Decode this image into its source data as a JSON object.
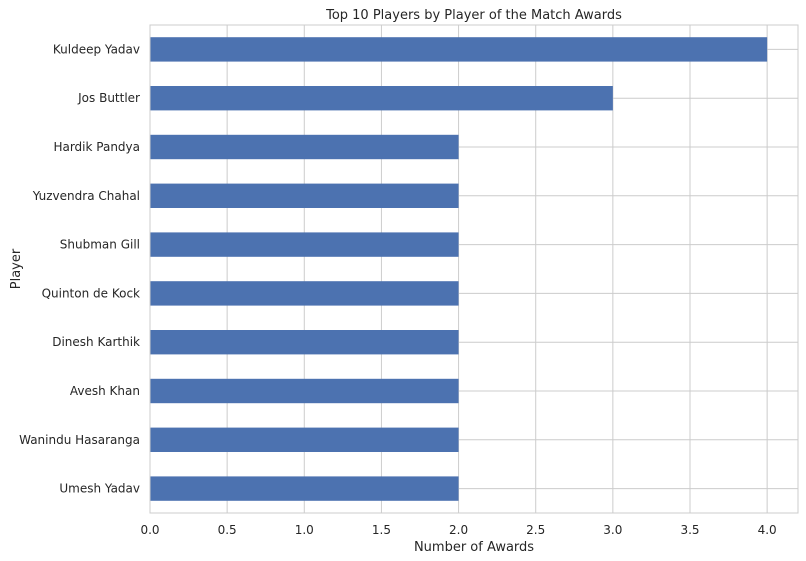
{
  "chart_data": {
    "type": "bar",
    "orientation": "horizontal",
    "title": "Top 10 Players by Player of the Match Awards",
    "xlabel": "Number of Awards",
    "ylabel": "Player",
    "categories": [
      "Kuldeep Yadav",
      "Jos Buttler",
      "Hardik Pandya",
      "Yuzvendra Chahal",
      "Shubman Gill",
      "Quinton de Kock",
      "Dinesh Karthik",
      "Avesh Khan",
      "Wanindu Hasaranga",
      "Umesh Yadav"
    ],
    "values": [
      4,
      3,
      2,
      2,
      2,
      2,
      2,
      2,
      2,
      2
    ],
    "xlim": [
      0,
      4.2
    ],
    "xticks": [
      "0.0",
      "0.5",
      "1.0",
      "1.5",
      "2.0",
      "2.5",
      "3.0",
      "3.5",
      "4.0"
    ],
    "grid": true,
    "bar_color": "#4c72b0"
  }
}
